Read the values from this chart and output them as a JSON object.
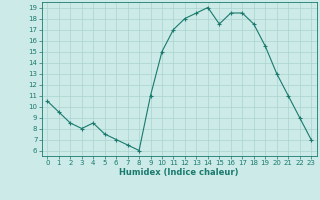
{
  "x": [
    0,
    1,
    2,
    3,
    4,
    5,
    6,
    7,
    8,
    9,
    10,
    11,
    12,
    13,
    14,
    15,
    16,
    17,
    18,
    19,
    20,
    21,
    22,
    23
  ],
  "y": [
    10.5,
    9.5,
    8.5,
    8.0,
    8.5,
    7.5,
    7.0,
    6.5,
    6.0,
    11.0,
    15.0,
    17.0,
    18.0,
    18.5,
    19.0,
    17.5,
    18.5,
    18.5,
    17.5,
    15.5,
    13.0,
    11.0,
    9.0,
    7.0
  ],
  "xlabel": "Humidex (Indice chaleur)",
  "xlim": [
    -0.5,
    23.5
  ],
  "ylim": [
    5.5,
    19.5
  ],
  "yticks": [
    6,
    7,
    8,
    9,
    10,
    11,
    12,
    13,
    14,
    15,
    16,
    17,
    18,
    19
  ],
  "xticks": [
    0,
    1,
    2,
    3,
    4,
    5,
    6,
    7,
    8,
    9,
    10,
    11,
    12,
    13,
    14,
    15,
    16,
    17,
    18,
    19,
    20,
    21,
    22,
    23
  ],
  "line_color": "#1a7a6e",
  "bg_color": "#cceae7",
  "grid_color": "#aad4d0",
  "text_color": "#1a7a6e",
  "fig_bg": "#cceae7"
}
